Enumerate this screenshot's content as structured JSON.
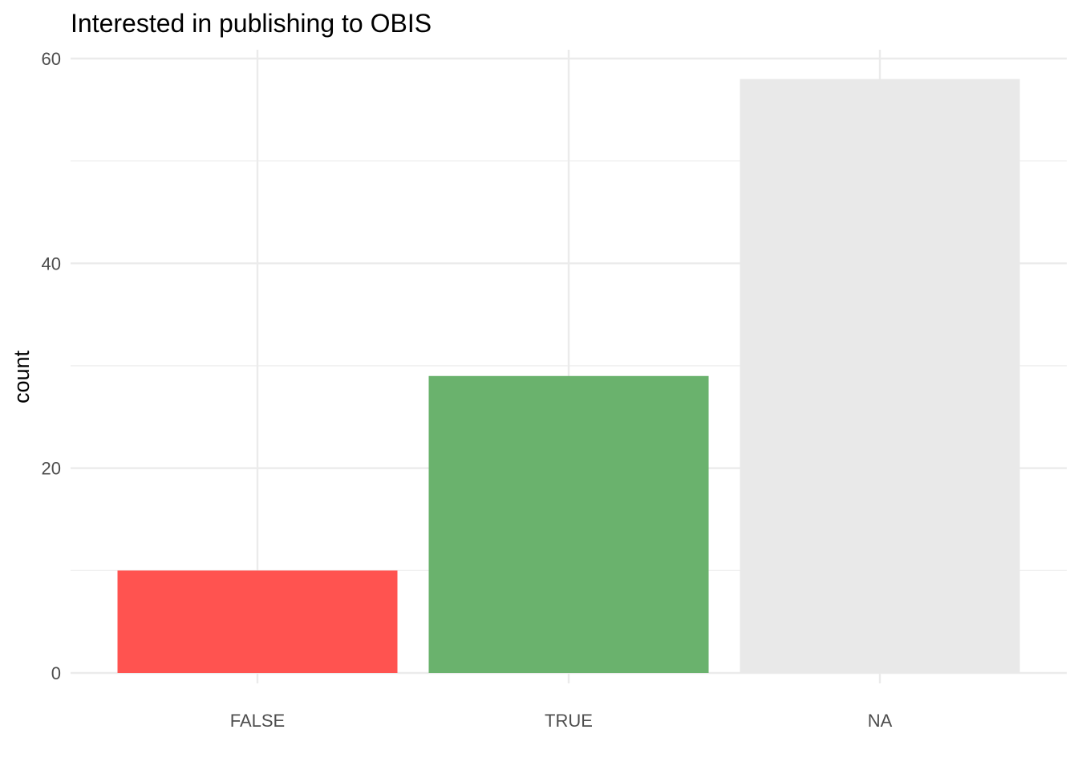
{
  "chart_data": {
    "type": "bar",
    "title": "Interested in publishing to OBIS",
    "xlabel": "",
    "ylabel": "count",
    "categories": [
      "FALSE",
      "TRUE",
      "NA"
    ],
    "values": [
      10,
      29,
      58
    ],
    "colors": [
      "#ff5350",
      "#6ab26d",
      "#e9e9e9"
    ],
    "ylim": [
      0,
      61
    ],
    "y_ticks": [
      0,
      20,
      40,
      60
    ],
    "grid": true,
    "legend": "none",
    "colors_theme": {
      "gridline": "#ebebeb",
      "tick_text": "#4d4d4d",
      "background": "#ffffff"
    }
  }
}
